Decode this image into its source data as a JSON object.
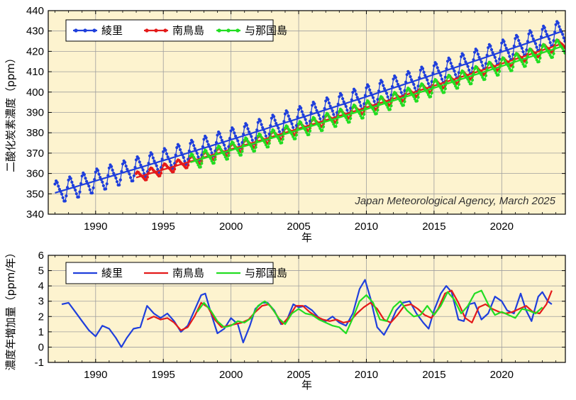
{
  "chart_data": [
    {
      "type": "line",
      "ylabel": "二酸化炭素濃度（ppm）",
      "xlabel": "年",
      "xlim": [
        1986.5,
        2024.7
      ],
      "ylim": [
        340,
        440
      ],
      "yticks": [
        340,
        350,
        360,
        370,
        380,
        390,
        400,
        410,
        420,
        430,
        440
      ],
      "xticks": [
        1990,
        1995,
        2000,
        2005,
        2010,
        2015,
        2020
      ],
      "grid": true,
      "legend_placement": "top-left",
      "annotation": "Japan Meteorological Agency, March 2025",
      "series": [
        {
          "name": "綾里",
          "color": "#1f3fdc",
          "start": 1987.0,
          "end": 2024.7,
          "base": 350.5,
          "growth": 1.95,
          "accel": 0.0045,
          "amp": 6.5,
          "markers": true
        },
        {
          "name": "南鳥島",
          "color": "#e41a1a",
          "start": 1993.0,
          "end": 2024.7,
          "base": 358.0,
          "growth": 1.95,
          "accel": 0.0045,
          "amp": 3.0,
          "markers": true
        },
        {
          "name": "与那国島",
          "color": "#22dd22",
          "start": 1997.0,
          "end": 2024.7,
          "base": 365.5,
          "growth": 1.95,
          "accel": 0.0045,
          "amp": 4.5,
          "markers": true
        }
      ]
    },
    {
      "type": "line",
      "ylabel": "濃度年増加量（ppm/年）",
      "xlabel": "年",
      "xlim": [
        1986.5,
        2024.7
      ],
      "ylim": [
        -1,
        6
      ],
      "yticks": [
        -1,
        0,
        1,
        2,
        3,
        4,
        5,
        6
      ],
      "xticks": [
        1990,
        1995,
        2000,
        2005,
        2010,
        2015,
        2020
      ],
      "grid": true,
      "legend_placement": "top-left",
      "series": [
        {
          "name": "綾里",
          "color": "#1f3fdc",
          "x": [
            1987.5,
            1988.0,
            1988.5,
            1989.0,
            1989.5,
            1990.0,
            1990.5,
            1991.0,
            1991.5,
            1991.9,
            1992.3,
            1992.8,
            1993.3,
            1993.8,
            1994.3,
            1994.8,
            1995.3,
            1995.8,
            1996.3,
            1996.8,
            1997.3,
            1997.8,
            1998.1,
            1998.6,
            1999.0,
            1999.5,
            2000.0,
            2000.5,
            2000.9,
            2001.4,
            2001.8,
            2002.3,
            2002.7,
            2003.2,
            2003.7,
            2004.1,
            2004.6,
            2005.0,
            2005.5,
            2006.0,
            2006.5,
            2007.0,
            2007.5,
            2008.0,
            2008.5,
            2009.0,
            2009.5,
            2009.9,
            2010.3,
            2010.8,
            2011.3,
            2011.8,
            2012.2,
            2012.7,
            2013.2,
            2013.7,
            2014.2,
            2014.6,
            2015.0,
            2015.5,
            2015.9,
            2016.3,
            2016.8,
            2017.2,
            2017.6,
            2018.0,
            2018.5,
            2019.0,
            2019.5,
            2020.0,
            2020.4,
            2020.9,
            2021.4,
            2021.8,
            2022.2,
            2022.7,
            2023.0,
            2023.4,
            2023.7
          ],
          "values": [
            2.8,
            2.9,
            2.3,
            1.7,
            1.1,
            0.7,
            1.4,
            1.2,
            0.6,
            0.0,
            0.6,
            1.2,
            1.3,
            2.7,
            2.2,
            1.9,
            2.2,
            1.7,
            1.0,
            1.4,
            2.4,
            3.4,
            3.5,
            2.0,
            0.9,
            1.2,
            1.9,
            1.5,
            0.3,
            1.4,
            2.5,
            2.9,
            2.9,
            2.4,
            1.5,
            1.7,
            2.8,
            2.6,
            2.7,
            2.4,
            1.9,
            1.7,
            2.0,
            1.6,
            1.4,
            2.2,
            3.8,
            4.4,
            3.2,
            1.3,
            0.8,
            1.6,
            2.4,
            2.9,
            3.0,
            2.2,
            1.6,
            1.2,
            2.4,
            3.5,
            4.0,
            3.6,
            1.8,
            1.7,
            2.8,
            2.9,
            1.8,
            2.2,
            3.3,
            3.0,
            2.4,
            2.2,
            3.5,
            2.4,
            1.7,
            3.3,
            3.6,
            3.0,
            2.8
          ]
        },
        {
          "name": "南鳥島",
          "color": "#e41a1a",
          "x": [
            1993.8,
            1994.3,
            1994.8,
            1995.3,
            1995.8,
            1996.3,
            1996.8,
            1997.3,
            1997.8,
            1998.3,
            1998.8,
            1999.3,
            1999.8,
            2000.3,
            2000.8,
            2001.3,
            2001.8,
            2002.3,
            2002.8,
            2003.3,
            2003.8,
            2004.3,
            2004.8,
            2005.3,
            2005.8,
            2006.3,
            2006.8,
            2007.3,
            2007.8,
            2008.3,
            2008.8,
            2009.3,
            2009.8,
            2010.3,
            2010.8,
            2011.3,
            2011.8,
            2012.3,
            2012.8,
            2013.3,
            2013.8,
            2014.3,
            2014.8,
            2015.3,
            2015.8,
            2016.3,
            2016.8,
            2017.3,
            2017.8,
            2018.3,
            2018.8,
            2019.3,
            2019.8,
            2020.3,
            2020.8,
            2021.3,
            2021.8,
            2022.3,
            2022.8,
            2023.3,
            2023.7
          ],
          "values": [
            1.8,
            2.0,
            1.8,
            1.9,
            1.6,
            1.1,
            1.3,
            2.0,
            2.9,
            2.6,
            1.8,
            1.3,
            1.4,
            1.5,
            1.6,
            1.8,
            2.3,
            2.7,
            2.8,
            2.2,
            1.5,
            2.0,
            2.7,
            2.7,
            2.3,
            2.0,
            1.8,
            1.7,
            1.8,
            1.6,
            1.7,
            2.2,
            2.6,
            2.9,
            2.5,
            1.8,
            1.6,
            2.1,
            2.7,
            2.8,
            2.5,
            2.1,
            1.9,
            2.5,
            3.5,
            3.7,
            2.9,
            1.9,
            1.6,
            2.6,
            2.8,
            2.5,
            2.3,
            2.2,
            2.3,
            2.5,
            2.7,
            2.3,
            2.2,
            2.8,
            3.7
          ]
        },
        {
          "name": "与那国島",
          "color": "#22dd22",
          "x": [
            1997.5,
            1998.0,
            1998.5,
            1999.0,
            1999.5,
            2000.0,
            2000.5,
            2001.0,
            2001.5,
            2002.0,
            2002.5,
            2003.0,
            2003.5,
            2004.0,
            2004.5,
            2005.0,
            2005.5,
            2006.0,
            2006.5,
            2007.0,
            2007.5,
            2008.0,
            2008.5,
            2009.0,
            2009.5,
            2010.0,
            2010.5,
            2011.0,
            2011.5,
            2012.0,
            2012.5,
            2013.0,
            2013.5,
            2014.0,
            2014.5,
            2015.0,
            2015.5,
            2016.0,
            2016.5,
            2017.0,
            2017.5,
            2018.0,
            2018.5,
            2019.0,
            2019.5,
            2020.0,
            2020.5,
            2021.0,
            2021.5,
            2022.0,
            2022.5,
            2023.0
          ],
          "values": [
            2.3,
            2.9,
            2.4,
            1.7,
            1.3,
            1.4,
            1.7,
            1.6,
            1.9,
            2.7,
            3.0,
            2.6,
            1.9,
            1.5,
            2.2,
            2.5,
            2.2,
            2.1,
            1.8,
            1.6,
            1.4,
            1.3,
            0.9,
            1.9,
            3.0,
            3.4,
            2.9,
            1.8,
            1.7,
            2.6,
            3.0,
            2.4,
            2.0,
            2.1,
            2.7,
            2.1,
            2.7,
            3.6,
            3.1,
            2.2,
            2.7,
            3.5,
            3.7,
            2.8,
            2.1,
            2.3,
            2.1,
            1.9,
            2.5,
            2.4,
            2.2,
            2.6
          ]
        }
      ]
    }
  ]
}
